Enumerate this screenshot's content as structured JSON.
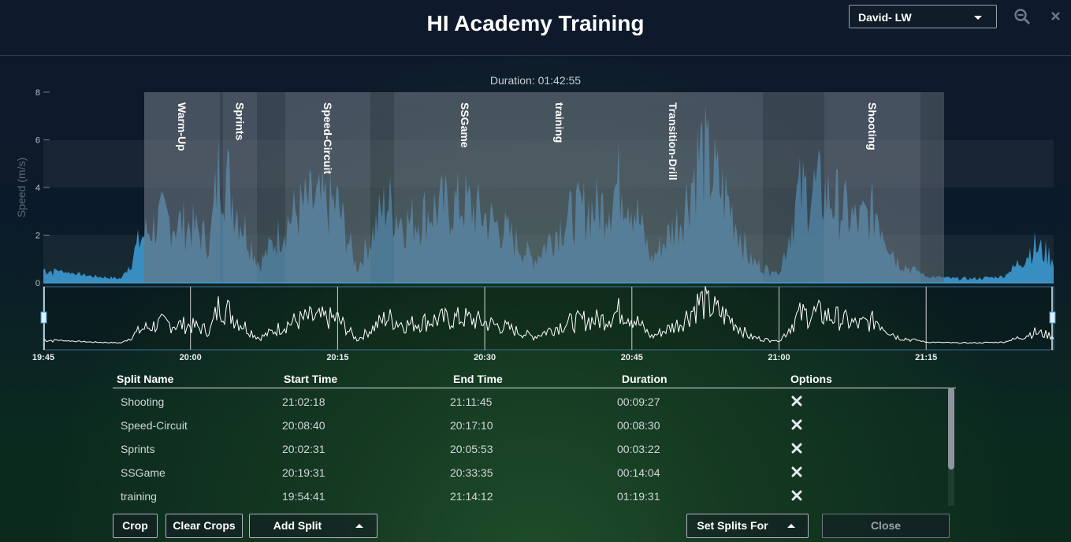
{
  "header": {
    "title": "HI Academy Training",
    "athlete_select": "David- LW"
  },
  "chart": {
    "duration_label": "Duration: 01:42:55",
    "ylabel": "Speed (m/s)",
    "yticks": [
      "0",
      "2",
      "4",
      "6",
      "8"
    ],
    "timeline_ticks": [
      "19:45",
      "20:00",
      "20:15",
      "20:30",
      "20:45",
      "21:00",
      "21:15"
    ],
    "split_overlays": [
      {
        "label": "Warm-Up"
      },
      {
        "label": "Sprints"
      },
      {
        "label": "Speed-Circuit"
      },
      {
        "label": "SSGame"
      },
      {
        "label": "training"
      },
      {
        "label": "Transition-Drill"
      },
      {
        "label": "Shooting"
      }
    ],
    "area_color": "#3b93c9",
    "overlay_color": "#6b7480"
  },
  "chart_data": {
    "type": "area",
    "title": "",
    "xlabel": "",
    "ylabel": "Speed (m/s)",
    "ylim": [
      0,
      8
    ],
    "x_range": [
      "19:45",
      "21:28"
    ],
    "grid": false,
    "series": [
      {
        "name": "",
        "x": [
          "19:45",
          "19:47",
          "19:50",
          "19:53",
          "19:55",
          "19:57",
          "20:00",
          "20:02",
          "20:03",
          "20:05",
          "20:07",
          "20:10",
          "20:12",
          "20:15",
          "20:17",
          "20:20",
          "20:22",
          "20:25",
          "20:28",
          "20:30",
          "20:32",
          "20:35",
          "20:38",
          "20:40",
          "20:42",
          "20:44",
          "20:45",
          "20:47",
          "20:50",
          "20:52",
          "20:55",
          "20:57",
          "21:00",
          "21:02",
          "21:04",
          "21:06",
          "21:08",
          "21:10",
          "21:12",
          "21:15",
          "21:18",
          "21:20",
          "21:23",
          "21:26",
          "21:28"
        ],
        "values": [
          0.6,
          0.4,
          0.2,
          0.1,
          2.0,
          2.8,
          2.5,
          1.8,
          5.5,
          3.0,
          0.8,
          2.8,
          3.5,
          3.4,
          0.6,
          3.6,
          2.6,
          3.3,
          3.5,
          2.9,
          2.3,
          1.0,
          2.7,
          3.2,
          3.3,
          4.6,
          3.7,
          1.0,
          2.9,
          5.8,
          3.4,
          1.0,
          0.3,
          3.9,
          4.1,
          3.5,
          2.6,
          3.2,
          1.0,
          0.2,
          0.1,
          0.1,
          0.2,
          1.6,
          1.1
        ]
      }
    ]
  },
  "table": {
    "columns": [
      "Split Name",
      "Start Time",
      "End Time",
      "Duration",
      "Options"
    ],
    "rows": [
      {
        "name": "Shooting",
        "start": "21:02:18",
        "end": "21:11:45",
        "duration": "00:09:27"
      },
      {
        "name": "Speed-Circuit",
        "start": "20:08:40",
        "end": "20:17:10",
        "duration": "00:08:30"
      },
      {
        "name": "Sprints",
        "start": "20:02:31",
        "end": "20:05:53",
        "duration": "00:03:22"
      },
      {
        "name": "SSGame",
        "start": "20:19:31",
        "end": "20:33:35",
        "duration": "00:14:04"
      },
      {
        "name": "training",
        "start": "19:54:41",
        "end": "21:14:12",
        "duration": "01:19:31"
      }
    ]
  },
  "buttons": {
    "crop": "Crop",
    "clear_crops": "Clear Crops",
    "add_split": "Add Split",
    "set_splits_for": "Set Splits For",
    "close": "Close"
  }
}
